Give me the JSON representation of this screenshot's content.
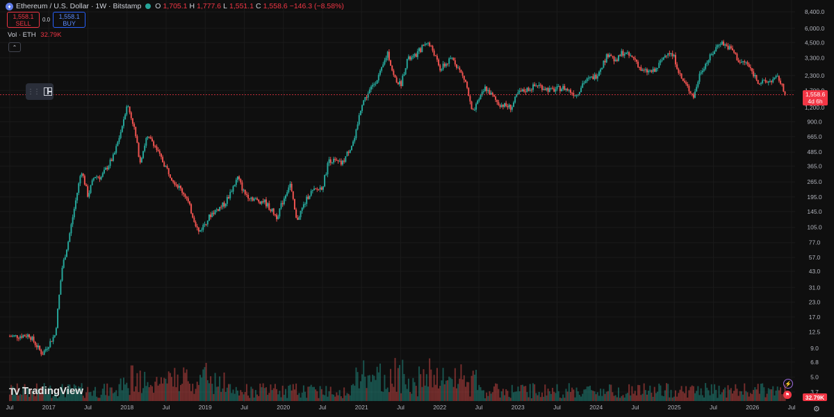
{
  "header": {
    "symbol": "Ethereum / U.S. Dollar · 1W · Bitstamp",
    "o_label": "O",
    "o_value": "1,705.1",
    "h_label": "H",
    "h_value": "1,777.6",
    "l_label": "L",
    "l_value": "1,551.1",
    "c_label": "C",
    "c_value": "1,558.6",
    "change": "−146.3 (−8.58%)"
  },
  "trade": {
    "sell_price": "1,558.1",
    "sell_label": "SELL",
    "spread": "0.0",
    "buy_price": "1,558.1",
    "buy_label": "BUY"
  },
  "volume_legend": {
    "label": "Vol · ETH",
    "value": "32.79K"
  },
  "price_tag": {
    "price": "1,558.6",
    "countdown": "4d 6h"
  },
  "volume_tag": "32.79K",
  "branding": "TradingView",
  "colors": {
    "up": "#26a69a",
    "down": "#ef5350",
    "current_line": "#f23645",
    "background": "#0f0f0f"
  },
  "chart_data": {
    "type": "candlestick",
    "scale": "log",
    "interval": "1W",
    "y_ticks": [
      "8,400.0",
      "6,000.0",
      "4,500.0",
      "3,300.0",
      "2,300.0",
      "1,700.0",
      "1,200.0",
      "900.0",
      "665.0",
      "485.0",
      "365.0",
      "265.0",
      "195.0",
      "145.0",
      "105.0",
      "77.0",
      "57.0",
      "43.0",
      "31.0",
      "23.0",
      "17.0",
      "12.5",
      "9.0",
      "6.8",
      "5.0",
      "3.7"
    ],
    "x_ticks": [
      "Jul",
      "2017",
      "Jul",
      "2018",
      "Jul",
      "2019",
      "Jul",
      "2020",
      "Jul",
      "2021",
      "Jul",
      "2022",
      "Jul",
      "2023",
      "Jul",
      "2024",
      "Jul",
      "2025",
      "Jul",
      "2026",
      "Jul"
    ],
    "current_price": 1558.6,
    "price_path": [
      {
        "date": "2016-08",
        "close": 11.5
      },
      {
        "date": "2016-10",
        "close": 11.8
      },
      {
        "date": "2016-12",
        "close": 8.0
      },
      {
        "date": "2017-02",
        "close": 12.0
      },
      {
        "date": "2017-03",
        "close": 45.0
      },
      {
        "date": "2017-04",
        "close": 80.0
      },
      {
        "date": "2017-06",
        "close": 340.0
      },
      {
        "date": "2017-07",
        "close": 200.0
      },
      {
        "date": "2017-08",
        "close": 300.0
      },
      {
        "date": "2017-09",
        "close": 290.0
      },
      {
        "date": "2017-11",
        "close": 450.0
      },
      {
        "date": "2017-12",
        "close": 720.0
      },
      {
        "date": "2018-01",
        "close": 1300.0
      },
      {
        "date": "2018-02",
        "close": 850.0
      },
      {
        "date": "2018-03",
        "close": 400.0
      },
      {
        "date": "2018-04",
        "close": 650.0
      },
      {
        "date": "2018-05",
        "close": 600.0
      },
      {
        "date": "2018-06",
        "close": 450.0
      },
      {
        "date": "2018-08",
        "close": 280.0
      },
      {
        "date": "2018-10",
        "close": 200.0
      },
      {
        "date": "2018-12",
        "close": 95.0
      },
      {
        "date": "2019-02",
        "close": 140.0
      },
      {
        "date": "2019-04",
        "close": 170.0
      },
      {
        "date": "2019-06",
        "close": 290.0
      },
      {
        "date": "2019-07",
        "close": 210.0
      },
      {
        "date": "2019-09",
        "close": 180.0
      },
      {
        "date": "2019-10",
        "close": 180.0
      },
      {
        "date": "2019-12",
        "close": 130.0
      },
      {
        "date": "2020-02",
        "close": 260.0
      },
      {
        "date": "2020-03",
        "close": 120.0
      },
      {
        "date": "2020-05",
        "close": 210.0
      },
      {
        "date": "2020-07",
        "close": 240.0
      },
      {
        "date": "2020-08",
        "close": 420.0
      },
      {
        "date": "2020-10",
        "close": 380.0
      },
      {
        "date": "2020-12",
        "close": 650.0
      },
      {
        "date": "2021-01",
        "close": 1300.0
      },
      {
        "date": "2021-02",
        "close": 1600.0
      },
      {
        "date": "2021-04",
        "close": 2500.0
      },
      {
        "date": "2021-05",
        "close": 3700.0
      },
      {
        "date": "2021-06",
        "close": 2200.0
      },
      {
        "date": "2021-07",
        "close": 1900.0
      },
      {
        "date": "2021-08",
        "close": 3200.0
      },
      {
        "date": "2021-09",
        "close": 3300.0
      },
      {
        "date": "2021-11",
        "close": 4600.0
      },
      {
        "date": "2021-12",
        "close": 3800.0
      },
      {
        "date": "2022-01",
        "close": 2600.0
      },
      {
        "date": "2022-03",
        "close": 3300.0
      },
      {
        "date": "2022-05",
        "close": 2000.0
      },
      {
        "date": "2022-06",
        "close": 1050.0
      },
      {
        "date": "2022-08",
        "close": 1800.0
      },
      {
        "date": "2022-10",
        "close": 1300.0
      },
      {
        "date": "2022-12",
        "close": 1200.0
      },
      {
        "date": "2023-01",
        "close": 1600.0
      },
      {
        "date": "2023-04",
        "close": 1900.0
      },
      {
        "date": "2023-06",
        "close": 1700.0
      },
      {
        "date": "2023-08",
        "close": 1800.0
      },
      {
        "date": "2023-10",
        "close": 1550.0
      },
      {
        "date": "2023-11",
        "close": 2000.0
      },
      {
        "date": "2024-01",
        "close": 2300.0
      },
      {
        "date": "2024-03",
        "close": 3700.0
      },
      {
        "date": "2024-04",
        "close": 3000.0
      },
      {
        "date": "2024-05",
        "close": 3700.0
      },
      {
        "date": "2024-07",
        "close": 3200.0
      },
      {
        "date": "2024-08",
        "close": 2500.0
      },
      {
        "date": "2024-10",
        "close": 2500.0
      },
      {
        "date": "2024-12",
        "close": 3800.0
      },
      {
        "date": "2025-01",
        "close": 3300.0
      },
      {
        "date": "2025-02",
        "close": 2200.0
      },
      {
        "date": "2025-04",
        "close": 1500.0
      },
      {
        "date": "2025-05",
        "close": 2500.0
      },
      {
        "date": "2025-07",
        "close": 3700.0
      },
      {
        "date": "2025-08",
        "close": 4600.0
      },
      {
        "date": "2025-09",
        "close": 4200.0
      },
      {
        "date": "2025-10",
        "close": 3800.0
      },
      {
        "date": "2025-11",
        "close": 3000.0
      },
      {
        "date": "2025-12",
        "close": 3000.0
      },
      {
        "date": "2026-02",
        "close": 2000.0
      },
      {
        "date": "2026-03",
        "close": 2000.0
      },
      {
        "date": "2026-05",
        "close": 2200.0
      },
      {
        "date": "2026-06",
        "close": 1558.6
      }
    ]
  }
}
